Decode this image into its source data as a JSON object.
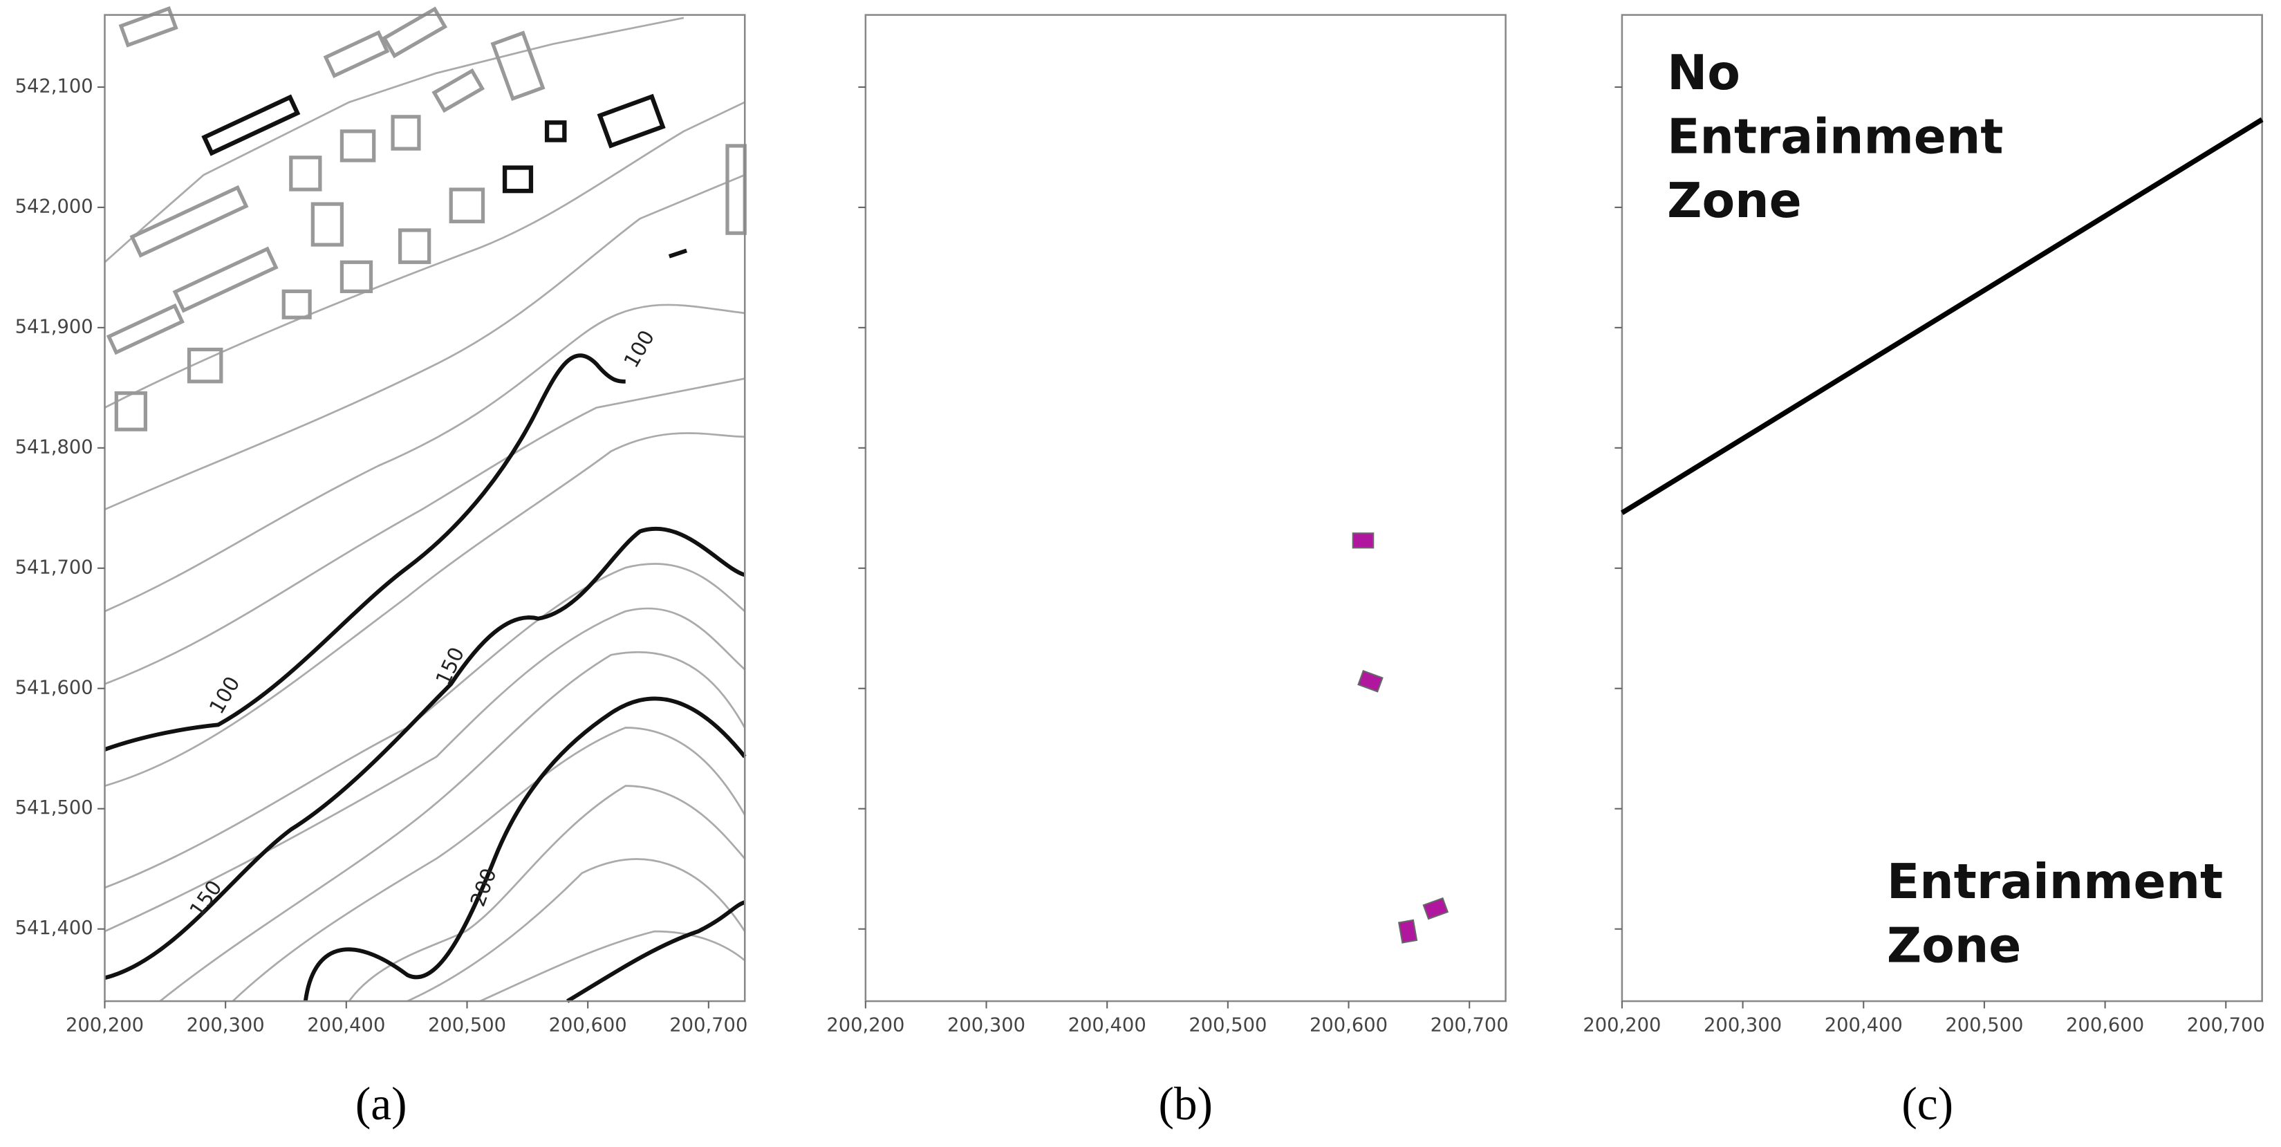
{
  "axes": {
    "xlim": [
      200200,
      200730
    ],
    "ylim": [
      541340,
      542160
    ],
    "xticks": [
      {
        "value": 200200,
        "label": "200,200"
      },
      {
        "value": 200300,
        "label": "200,300"
      },
      {
        "value": 200400,
        "label": "200,400"
      },
      {
        "value": 200500,
        "label": "200,500"
      },
      {
        "value": 200600,
        "label": "200,600"
      },
      {
        "value": 200700,
        "label": "200,700"
      }
    ],
    "yticks": [
      {
        "value": 541400,
        "label": "541,400"
      },
      {
        "value": 541500,
        "label": "541,500"
      },
      {
        "value": 541600,
        "label": "541,600"
      },
      {
        "value": 541700,
        "label": "541,700"
      },
      {
        "value": 541800,
        "label": "541,800"
      },
      {
        "value": 541900,
        "label": "541,900"
      },
      {
        "value": 542000,
        "label": "542,000"
      },
      {
        "value": 542100,
        "label": "542,100"
      }
    ]
  },
  "panels": [
    {
      "label": "(a)",
      "contour_labels": [
        "100",
        "100",
        "150",
        "150",
        "200"
      ]
    },
    {
      "label": "(b)",
      "sources": {
        "x": [
          200612,
          200618,
          200649,
          200672
        ],
        "y": [
          541723,
          541606,
          541398,
          541417
        ],
        "color": "#b0179e"
      }
    },
    {
      "label": "(c)",
      "boundary": {
        "x": [
          200200,
          200730
        ],
        "y": [
          541746,
          542073
        ]
      },
      "upper_zone": [
        "No",
        "Entrainment",
        "Zone"
      ],
      "lower_zone": [
        "Entrainment",
        "Zone"
      ]
    }
  ]
}
